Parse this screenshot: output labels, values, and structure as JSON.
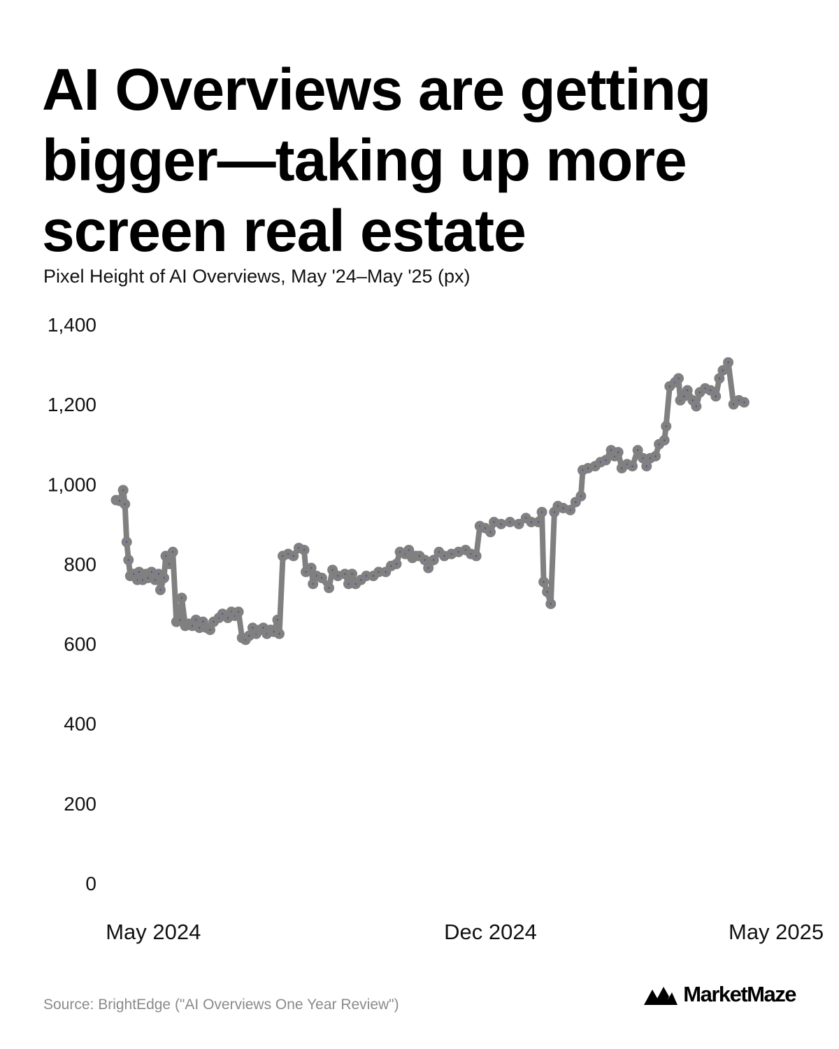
{
  "title": "AI Overviews are getting bigger—taking up more screen real estate",
  "subtitle": "Pixel Height of AI Overviews, May '24–May '25 (px)",
  "source": "Source: BrightEdge (\"AI Overviews One Year Review\")",
  "brand": {
    "name": "MarketMaze",
    "icon": "marketmaze-logo-icon"
  },
  "colors": {
    "line": "#808080",
    "marker_dot": "#3a3a9a",
    "text": "#000000",
    "source": "#8a8a8a"
  },
  "chart_data": {
    "type": "line",
    "title": "Pixel Height of AI Overviews, May '24–May '25 (px)",
    "xlabel": "",
    "ylabel": "",
    "ylim": [
      0,
      1400
    ],
    "yticks": [
      0,
      200,
      400,
      600,
      800,
      1000,
      1200,
      1400
    ],
    "ytick_labels": [
      "0",
      "200",
      "400",
      "600",
      "800",
      "1,000",
      "1,200",
      "1,400"
    ],
    "xlim": [
      0,
      383
    ],
    "xticks": [
      {
        "t": 21,
        "label": "May 2024"
      },
      {
        "t": 211,
        "label": "Dec 2024"
      },
      {
        "t": 372,
        "label": "May 2025"
      }
    ],
    "grid": false,
    "legend": "none",
    "series": [
      {
        "points": [
          [
            0,
            960
          ],
          [
            2,
            958
          ],
          [
            4,
            985
          ],
          [
            5,
            950
          ],
          [
            6,
            855
          ],
          [
            7,
            810
          ],
          [
            8,
            770
          ],
          [
            10,
            775
          ],
          [
            12,
            760
          ],
          [
            13,
            780
          ],
          [
            15,
            760
          ],
          [
            17,
            775
          ],
          [
            18,
            765
          ],
          [
            20,
            780
          ],
          [
            22,
            760
          ],
          [
            24,
            775
          ],
          [
            25,
            735
          ],
          [
            27,
            765
          ],
          [
            28,
            820
          ],
          [
            30,
            800
          ],
          [
            32,
            830
          ],
          [
            34,
            655
          ],
          [
            36,
            660
          ],
          [
            37,
            715
          ],
          [
            39,
            645
          ],
          [
            41,
            650
          ],
          [
            43,
            645
          ],
          [
            45,
            660
          ],
          [
            47,
            640
          ],
          [
            49,
            655
          ],
          [
            51,
            640
          ],
          [
            53,
            635
          ],
          [
            55,
            655
          ],
          [
            58,
            665
          ],
          [
            60,
            675
          ],
          [
            63,
            665
          ],
          [
            65,
            680
          ],
          [
            67,
            670
          ],
          [
            69,
            680
          ],
          [
            71,
            615
          ],
          [
            73,
            610
          ],
          [
            75,
            620
          ],
          [
            77,
            640
          ],
          [
            79,
            625
          ],
          [
            81,
            635
          ],
          [
            83,
            640
          ],
          [
            85,
            625
          ],
          [
            87,
            635
          ],
          [
            89,
            630
          ],
          [
            91,
            660
          ],
          [
            92,
            625
          ],
          [
            94,
            820
          ],
          [
            97,
            825
          ],
          [
            100,
            820
          ],
          [
            103,
            840
          ],
          [
            106,
            835
          ],
          [
            107,
            780
          ],
          [
            110,
            790
          ],
          [
            111,
            750
          ],
          [
            113,
            770
          ],
          [
            116,
            765
          ],
          [
            120,
            740
          ],
          [
            122,
            785
          ],
          [
            125,
            770
          ],
          [
            129,
            775
          ],
          [
            131,
            750
          ],
          [
            133,
            775
          ],
          [
            135,
            750
          ],
          [
            138,
            760
          ],
          [
            141,
            770
          ],
          [
            145,
            770
          ],
          [
            148,
            780
          ],
          [
            152,
            780
          ],
          [
            155,
            795
          ],
          [
            158,
            800
          ],
          [
            160,
            830
          ],
          [
            163,
            825
          ],
          [
            165,
            835
          ],
          [
            167,
            815
          ],
          [
            169,
            820
          ],
          [
            171,
            820
          ],
          [
            174,
            810
          ],
          [
            176,
            790
          ],
          [
            179,
            810
          ],
          [
            182,
            830
          ],
          [
            185,
            820
          ],
          [
            189,
            825
          ],
          [
            193,
            830
          ],
          [
            197,
            835
          ],
          [
            200,
            825
          ],
          [
            203,
            820
          ],
          [
            205,
            895
          ],
          [
            208,
            890
          ],
          [
            211,
            880
          ],
          [
            213,
            905
          ],
          [
            217,
            900
          ],
          [
            222,
            905
          ],
          [
            227,
            900
          ],
          [
            231,
            915
          ],
          [
            234,
            905
          ],
          [
            238,
            905
          ],
          [
            240,
            930
          ],
          [
            241,
            755
          ],
          [
            243,
            730
          ],
          [
            245,
            700
          ],
          [
            247,
            930
          ],
          [
            249,
            945
          ],
          [
            252,
            940
          ],
          [
            256,
            935
          ],
          [
            259,
            955
          ],
          [
            262,
            970
          ],
          [
            263,
            1035
          ],
          [
            266,
            1040
          ],
          [
            270,
            1045
          ],
          [
            273,
            1055
          ],
          [
            276,
            1060
          ],
          [
            279,
            1085
          ],
          [
            281,
            1070
          ],
          [
            283,
            1080
          ],
          [
            285,
            1040
          ],
          [
            288,
            1050
          ],
          [
            291,
            1045
          ],
          [
            294,
            1085
          ],
          [
            297,
            1065
          ],
          [
            299,
            1045
          ],
          [
            301,
            1065
          ],
          [
            304,
            1070
          ],
          [
            306,
            1100
          ],
          [
            309,
            1110
          ],
          [
            310,
            1145
          ],
          [
            312,
            1245
          ],
          [
            315,
            1255
          ],
          [
            317,
            1265
          ],
          [
            318,
            1210
          ],
          [
            320,
            1220
          ],
          [
            322,
            1235
          ],
          [
            325,
            1210
          ],
          [
            327,
            1195
          ],
          [
            329,
            1230
          ],
          [
            332,
            1240
          ],
          [
            335,
            1235
          ],
          [
            338,
            1220
          ],
          [
            340,
            1265
          ],
          [
            342,
            1285
          ],
          [
            345,
            1305
          ],
          [
            348,
            1200
          ],
          [
            351,
            1210
          ],
          [
            354,
            1205
          ]
        ]
      }
    ]
  }
}
